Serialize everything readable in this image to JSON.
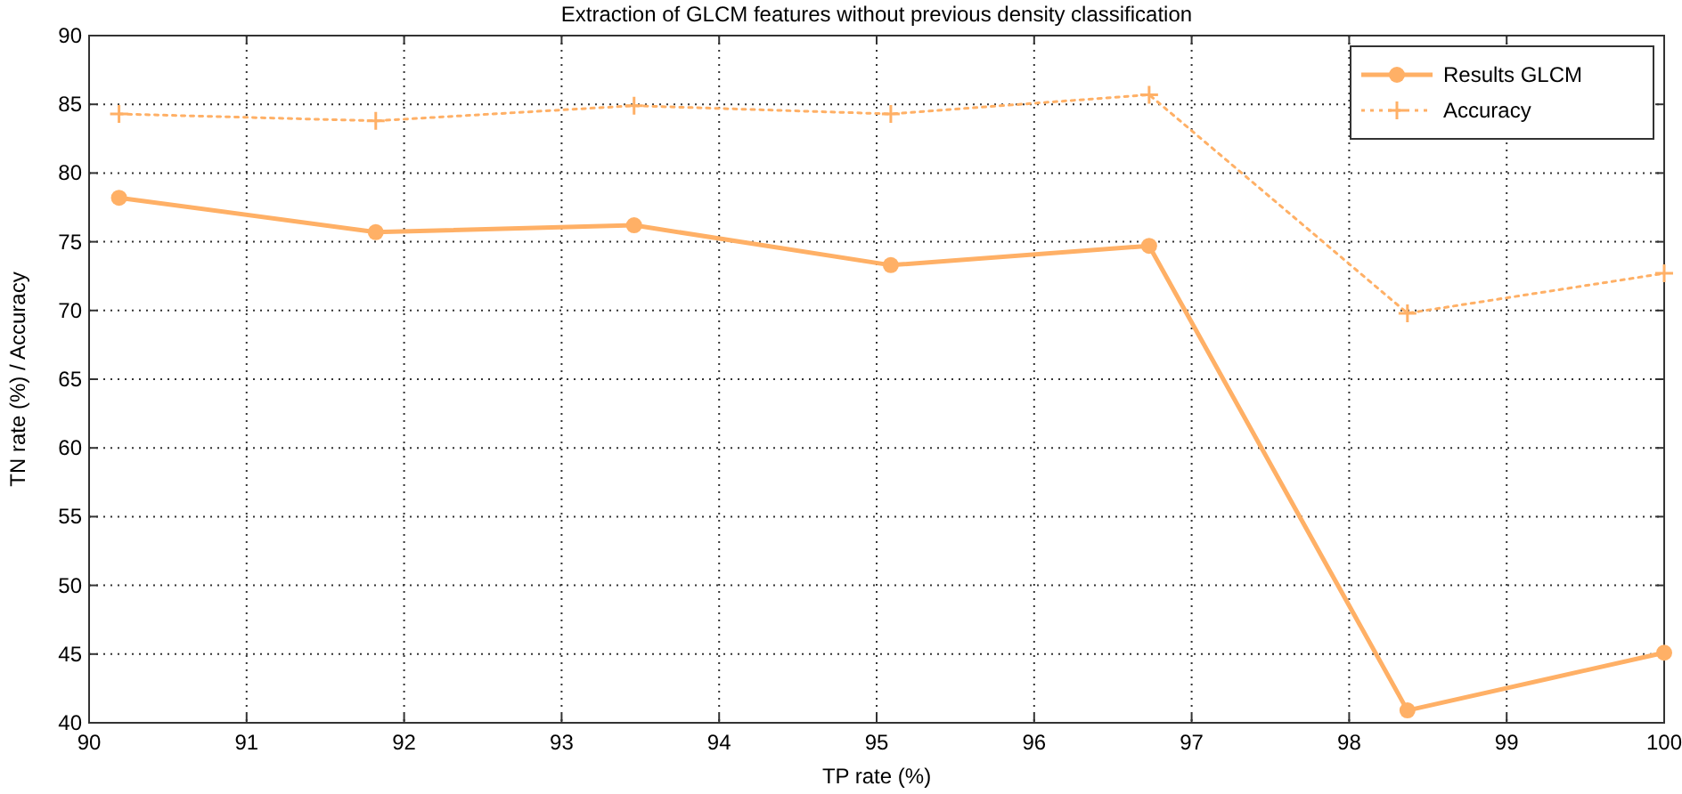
{
  "chart_data": {
    "type": "line",
    "title": "Extraction of GLCM features without previous density classification",
    "xlabel": "TP rate (%)",
    "ylabel": "TN rate (%) / Accuracy",
    "x": [
      90.19,
      91.82,
      93.46,
      95.09,
      96.73,
      98.37,
      100
    ],
    "series": [
      {
        "name": "Results GLCM",
        "color": "#ffb066",
        "marker": "circle",
        "line_style": "solid",
        "values": [
          78.2,
          75.7,
          76.2,
          73.3,
          74.7,
          40.9,
          45.1
        ]
      },
      {
        "name": "Accuracy",
        "color": "#ffb066",
        "marker": "cross",
        "line_style": "dotted",
        "values": [
          84.3,
          83.8,
          84.9,
          84.3,
          85.7,
          69.8,
          72.7
        ]
      }
    ],
    "xlim": [
      90,
      100
    ],
    "xticks": [
      90,
      91,
      92,
      93,
      94,
      95,
      96,
      97,
      98,
      99,
      100
    ],
    "ylim": [
      40,
      90
    ],
    "yticks": [
      40,
      45,
      50,
      55,
      60,
      65,
      70,
      75,
      80,
      85,
      90
    ],
    "grid": true,
    "legend": "top right"
  }
}
